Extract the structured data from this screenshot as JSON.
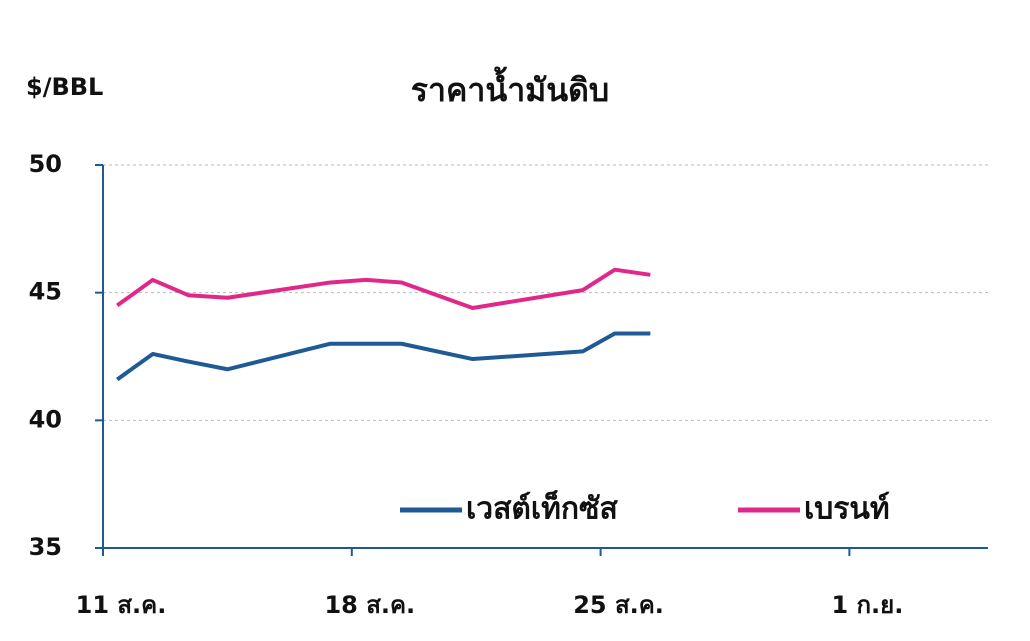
{
  "chart_data": {
    "type": "line",
    "title": "ราคาน้ำมันดิบ",
    "y_label": "$/BBL",
    "x": [
      11.4,
      12.4,
      13.4,
      14.5,
      17.4,
      18.4,
      19.4,
      21.4,
      24.5,
      25.4,
      26.4
    ],
    "series": [
      {
        "name": "เวสต์เท็กซัส",
        "color": "#1f5a96",
        "values": [
          41.6,
          42.6,
          42.3,
          42.0,
          43.0,
          43.0,
          43.0,
          42.4,
          42.7,
          43.4,
          43.4
        ]
      },
      {
        "name": "เบรนท์",
        "color": "#e0288a",
        "values": [
          44.5,
          45.5,
          44.9,
          44.8,
          45.4,
          45.5,
          45.4,
          44.4,
          45.1,
          45.9,
          45.7
        ]
      }
    ],
    "xlim": [
      11,
      35.9
    ],
    "xticks": [
      {
        "value": 11,
        "label": "11 ส.ค."
      },
      {
        "value": 18,
        "label": "18 ส.ค."
      },
      {
        "value": 25,
        "label": "25 ส.ค."
      },
      {
        "value": 32,
        "label": "1 ก.ย."
      }
    ],
    "ylim": [
      35,
      50
    ],
    "yticks": [
      35,
      40,
      45,
      50
    ],
    "grid": true,
    "legend": "bottom"
  }
}
